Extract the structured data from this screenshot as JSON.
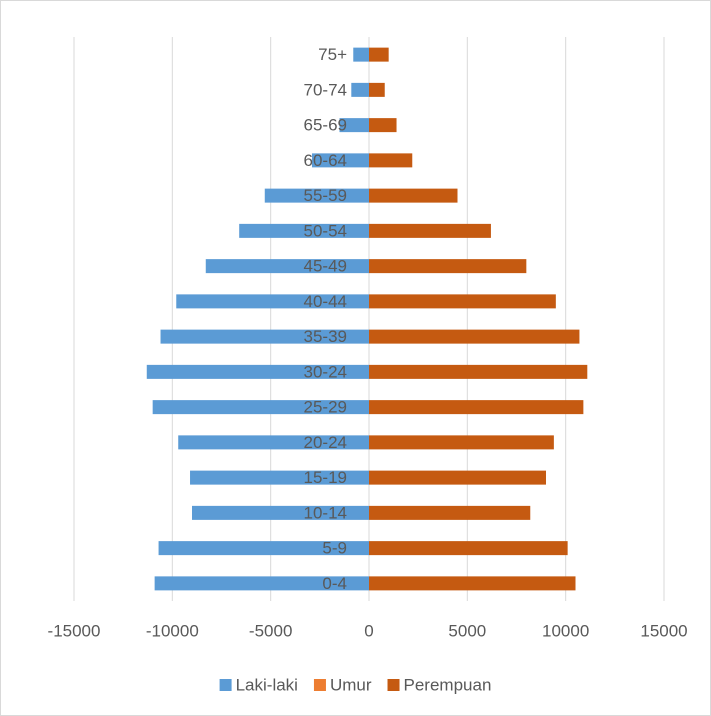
{
  "chart_data": {
    "type": "bar",
    "orientation": "horizontal",
    "stacked": true,
    "categories": [
      "0-4",
      "5-9",
      "10-14",
      "15-19",
      "20-24",
      "25-29",
      "30-24",
      "35-39",
      "40-44",
      "45-49",
      "50-54",
      "55-59",
      "60-64",
      "65-69",
      "70-74",
      "75+"
    ],
    "series": [
      {
        "name": "Laki-laki",
        "color": "#5b9bd5",
        "values": [
          -10900,
          -10700,
          -9000,
          -9100,
          -9700,
          -11000,
          -11300,
          -10600,
          -9800,
          -8300,
          -6600,
          -5300,
          -2900,
          -1500,
          -900,
          -800
        ]
      },
      {
        "name": "Umur",
        "color": "#ed7d31",
        "values": [
          0,
          0,
          0,
          0,
          0,
          0,
          0,
          0,
          0,
          0,
          0,
          0,
          0,
          0,
          0,
          0
        ]
      },
      {
        "name": "Perempuan",
        "color": "#c55a11",
        "values": [
          10500,
          10100,
          8200,
          9000,
          9400,
          10900,
          11100,
          10700,
          9500,
          8000,
          6200,
          4500,
          2200,
          1400,
          800,
          1000
        ]
      }
    ],
    "xlim": [
      -15000,
      15000
    ],
    "xticks": [
      -15000,
      -10000,
      -5000,
      0,
      5000,
      10000,
      15000
    ],
    "grid": true,
    "legend": "bottom"
  }
}
